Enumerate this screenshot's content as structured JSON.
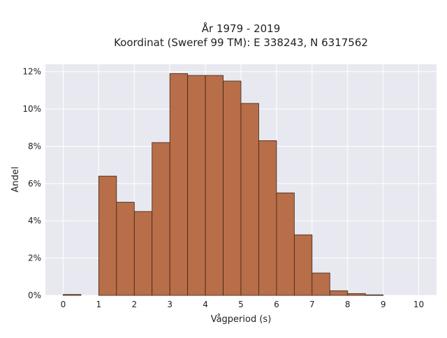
{
  "chart_data": {
    "type": "bar",
    "title_line1": "År 1979 - 2019",
    "title_line2": "Koordinat (Sweref 99 TM): E 338243, N 6317562",
    "xlabel": "Vågperiod (s)",
    "ylabel": "Andel",
    "xlim": [
      -0.5,
      10.5
    ],
    "ylim": [
      0,
      12.4
    ],
    "x_ticks": [
      0,
      1,
      2,
      3,
      4,
      5,
      6,
      7,
      8,
      9,
      10
    ],
    "y_ticks": [
      0,
      2,
      4,
      6,
      8,
      10,
      12
    ],
    "y_tick_suffix": "%",
    "grid": true,
    "bin_width": 0.5,
    "bins": [
      {
        "x0": 0.0,
        "x1": 0.5,
        "value": 0.05
      },
      {
        "x0": 1.0,
        "x1": 1.5,
        "value": 6.4
      },
      {
        "x0": 1.5,
        "x1": 2.0,
        "value": 5.0
      },
      {
        "x0": 2.0,
        "x1": 2.5,
        "value": 4.5
      },
      {
        "x0": 2.5,
        "x1": 3.0,
        "value": 8.2
      },
      {
        "x0": 3.0,
        "x1": 3.5,
        "value": 11.9
      },
      {
        "x0": 3.5,
        "x1": 4.0,
        "value": 11.8
      },
      {
        "x0": 4.0,
        "x1": 4.5,
        "value": 11.8
      },
      {
        "x0": 4.5,
        "x1": 5.0,
        "value": 11.5
      },
      {
        "x0": 5.0,
        "x1": 5.5,
        "value": 10.3
      },
      {
        "x0": 5.5,
        "x1": 6.0,
        "value": 8.3
      },
      {
        "x0": 6.0,
        "x1": 6.5,
        "value": 5.5
      },
      {
        "x0": 6.5,
        "x1": 7.0,
        "value": 3.25
      },
      {
        "x0": 7.0,
        "x1": 7.5,
        "value": 1.2
      },
      {
        "x0": 7.5,
        "x1": 8.0,
        "value": 0.25
      },
      {
        "x0": 8.0,
        "x1": 8.5,
        "value": 0.1
      },
      {
        "x0": 8.5,
        "x1": 9.0,
        "value": 0.03
      }
    ],
    "colors": {
      "bar_fill": "#b86e48",
      "bar_stroke": "#3a2418",
      "plot_bg": "#e8e8f0",
      "grid": "#ffffff"
    }
  }
}
